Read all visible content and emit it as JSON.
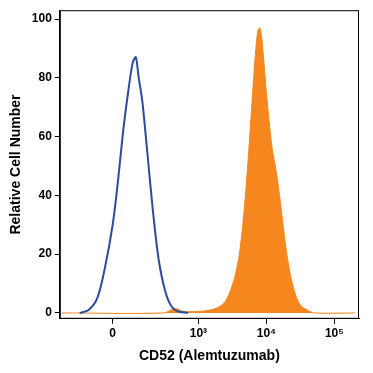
{
  "chart_data": {
    "type": "line",
    "x_label": "CD52 (Alemtuzumab)",
    "y_label": "Relative Cell Number",
    "xlim": [
      -320,
      230000
    ],
    "xticks": [
      0,
      {
        "value": 1000,
        "label": "10³"
      },
      {
        "value": 10000,
        "label": "10⁴"
      },
      {
        "value": 100000,
        "label": "10⁵"
      }
    ],
    "ylim": [
      -2,
      103
    ],
    "yticks": [
      0,
      20,
      40,
      60,
      80,
      100
    ],
    "series": [
      {
        "type": "line",
        "color": "#2c4b9b",
        "x": [
          -150,
          -100,
          -60,
          -30,
          0,
          20,
          40,
          60,
          80,
          95,
          110,
          130,
          160,
          200,
          250,
          320,
          400,
          500,
          700
        ],
        "values": [
          0,
          1,
          5,
          15,
          30,
          45,
          62,
          75,
          85,
          87,
          80,
          72,
          55,
          35,
          18,
          7,
          2,
          0.5,
          0
        ]
      },
      {
        "type": "area",
        "color": "#f6871f",
        "x": [
          -300,
          300,
          450,
          600,
          1000,
          1500,
          2000,
          2500,
          3000,
          3500,
          4000,
          4500,
          5000,
          5500,
          6000,
          6500,
          7000,
          7500,
          8000,
          8500,
          9000,
          10000,
          11000,
          12000,
          13000,
          14000,
          16000,
          18000,
          20000,
          23000,
          27000,
          32000,
          40000,
          50000,
          200000
        ],
        "values": [
          0,
          0,
          1.5,
          0.5,
          0.5,
          1,
          2,
          4,
          8,
          13,
          20,
          30,
          42,
          55,
          68,
          80,
          90,
          96,
          97,
          94,
          88,
          75,
          65,
          57,
          52,
          48,
          38,
          28,
          20,
          12,
          6,
          2.5,
          1,
          0,
          0
        ]
      }
    ]
  }
}
